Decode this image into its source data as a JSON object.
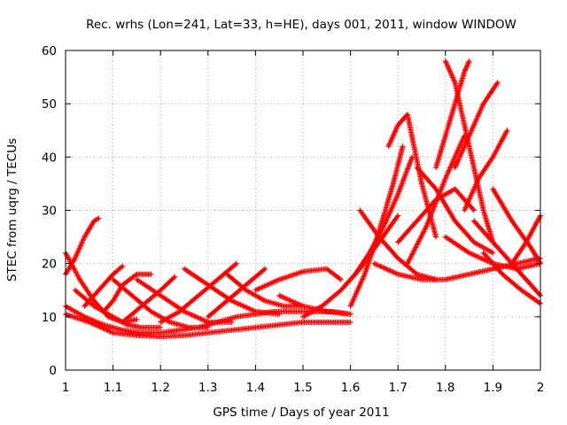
{
  "chart_data": {
    "type": "scatter",
    "title": "Rec. wrhs (Lon=241, Lat=33, h=HE), days 001, 2011, window WINDOW",
    "xlabel": "GPS time / Days of year 2011",
    "ylabel": "STEC from uqrg / TECUs",
    "xlim": [
      1,
      2
    ],
    "ylim": [
      0,
      60
    ],
    "x_ticks": [
      "1",
      "1.1",
      "1.2",
      "1.3",
      "1.4",
      "1.5",
      "1.6",
      "1.7",
      "1.8",
      "1.9",
      "2"
    ],
    "y_ticks": [
      "0",
      "10",
      "20",
      "30",
      "40",
      "50",
      "60"
    ],
    "grid": true,
    "legend": "none",
    "marker": "plus",
    "color": "#ff0000",
    "series": [
      {
        "x": [
          1.0,
          1.02,
          1.04,
          1.06,
          1.07
        ],
        "y": [
          18,
          21,
          25,
          28,
          28.5
        ]
      },
      {
        "x": [
          1.0,
          1.03,
          1.06,
          1.09,
          1.12,
          1.15
        ],
        "y": [
          22,
          17,
          13,
          10,
          9,
          9.5
        ]
      },
      {
        "x": [
          1.0,
          1.04,
          1.08,
          1.12,
          1.16,
          1.2,
          1.24,
          1.28,
          1.32,
          1.36,
          1.4,
          1.44,
          1.48,
          1.52,
          1.56,
          1.6
        ],
        "y": [
          12,
          10,
          8.5,
          7.5,
          7,
          7,
          7.5,
          8,
          9,
          10,
          10.5,
          11,
          11,
          11,
          11,
          10.5
        ]
      },
      {
        "x": [
          1.0,
          1.05,
          1.1,
          1.15,
          1.2,
          1.25,
          1.3,
          1.35,
          1.4,
          1.45,
          1.5,
          1.55,
          1.6
        ],
        "y": [
          10.5,
          9,
          7,
          6.5,
          6.3,
          6.5,
          7,
          7.5,
          8,
          8.5,
          9,
          9,
          9
        ]
      },
      {
        "x": [
          1.02,
          1.06,
          1.1,
          1.13,
          1.16,
          1.2
        ],
        "y": [
          15,
          12,
          10,
          8.5,
          8,
          8
        ]
      },
      {
        "x": [
          1.04,
          1.07,
          1.1,
          1.12
        ],
        "y": [
          12,
          15,
          18,
          19.5
        ]
      },
      {
        "x": [
          1.08,
          1.1,
          1.12,
          1.15,
          1.18
        ],
        "y": [
          11,
          13,
          16,
          18,
          18
        ]
      },
      {
        "x": [
          1.1,
          1.14,
          1.18,
          1.22,
          1.26,
          1.3
        ],
        "y": [
          17,
          14,
          11,
          9,
          8,
          8
        ]
      },
      {
        "x": [
          1.12,
          1.16,
          1.2,
          1.23
        ],
        "y": [
          9,
          12,
          15,
          17.5
        ]
      },
      {
        "x": [
          1.15,
          1.2,
          1.25,
          1.3,
          1.35
        ],
        "y": [
          17,
          14,
          11,
          9,
          9
        ]
      },
      {
        "x": [
          1.2,
          1.24,
          1.28,
          1.32,
          1.36
        ],
        "y": [
          9,
          11,
          14,
          17,
          20
        ]
      },
      {
        "x": [
          1.25,
          1.3,
          1.35,
          1.4,
          1.45
        ],
        "y": [
          19,
          16,
          13,
          11,
          10.5
        ]
      },
      {
        "x": [
          1.3,
          1.34,
          1.38,
          1.42
        ],
        "y": [
          10,
          13,
          16,
          19
        ]
      },
      {
        "x": [
          1.34,
          1.38,
          1.42,
          1.46,
          1.5
        ],
        "y": [
          18,
          15,
          13,
          12,
          12
        ]
      },
      {
        "x": [
          1.4,
          1.45,
          1.5,
          1.55,
          1.58
        ],
        "y": [
          15,
          17,
          18.5,
          19,
          17
        ]
      },
      {
        "x": [
          1.45,
          1.5,
          1.55,
          1.6
        ],
        "y": [
          14,
          12,
          11,
          10.5
        ]
      },
      {
        "x": [
          1.5,
          1.54,
          1.58,
          1.62,
          1.66,
          1.7
        ],
        "y": [
          10,
          12,
          15,
          19,
          24,
          29
        ]
      },
      {
        "x": [
          1.6,
          1.63,
          1.66,
          1.69,
          1.71
        ],
        "y": [
          12,
          18,
          26,
          35,
          42
        ]
      },
      {
        "x": [
          1.61,
          1.64,
          1.67,
          1.7,
          1.73
        ],
        "y": [
          18,
          22,
          27,
          33,
          40
        ]
      },
      {
        "x": [
          1.62,
          1.66,
          1.7,
          1.74,
          1.78
        ],
        "y": [
          30,
          25,
          21,
          18,
          17
        ]
      },
      {
        "x": [
          1.65,
          1.7,
          1.75,
          1.8,
          1.85,
          1.9,
          1.95,
          2.0
        ],
        "y": [
          20,
          18,
          17,
          17,
          18,
          19,
          20,
          21
        ]
      },
      {
        "x": [
          1.68,
          1.7,
          1.72,
          1.75,
          1.78
        ],
        "y": [
          42,
          46,
          48,
          35,
          25
        ]
      },
      {
        "x": [
          1.7,
          1.74,
          1.78,
          1.82,
          1.86
        ],
        "y": [
          24,
          28,
          32,
          34,
          30
        ]
      },
      {
        "x": [
          1.72,
          1.76,
          1.8,
          1.84
        ],
        "y": [
          20,
          27,
          36,
          44
        ]
      },
      {
        "x": [
          1.74,
          1.78,
          1.82,
          1.86,
          1.9
        ],
        "y": [
          38,
          34,
          28,
          24,
          22
        ]
      },
      {
        "x": [
          1.78,
          1.8,
          1.82,
          1.84,
          1.85
        ],
        "y": [
          38,
          44,
          50,
          56,
          58
        ]
      },
      {
        "x": [
          1.8,
          1.82,
          1.84,
          1.86,
          1.88,
          1.9
        ],
        "y": [
          58,
          54,
          46,
          38,
          30,
          24
        ]
      },
      {
        "x": [
          1.82,
          1.85,
          1.88,
          1.91
        ],
        "y": [
          38,
          44,
          50,
          54
        ]
      },
      {
        "x": [
          1.84,
          1.87,
          1.9,
          1.93
        ],
        "y": [
          30,
          36,
          40,
          45
        ]
      },
      {
        "x": [
          1.86,
          1.9,
          1.94,
          1.98,
          2.0
        ],
        "y": [
          28,
          24,
          20,
          16,
          14
        ]
      },
      {
        "x": [
          1.88,
          1.92,
          1.96,
          2.0
        ],
        "y": [
          22,
          18,
          15,
          12.5
        ]
      },
      {
        "x": [
          1.9,
          1.94,
          1.98,
          2.0
        ],
        "y": [
          34,
          28,
          23,
          20
        ]
      },
      {
        "x": [
          1.94,
          1.97,
          2.0
        ],
        "y": [
          20,
          24,
          29
        ]
      },
      {
        "x": [
          1.8,
          1.85,
          1.9,
          1.95,
          2.0
        ],
        "y": [
          25,
          22,
          20,
          19,
          20
        ]
      }
    ]
  }
}
